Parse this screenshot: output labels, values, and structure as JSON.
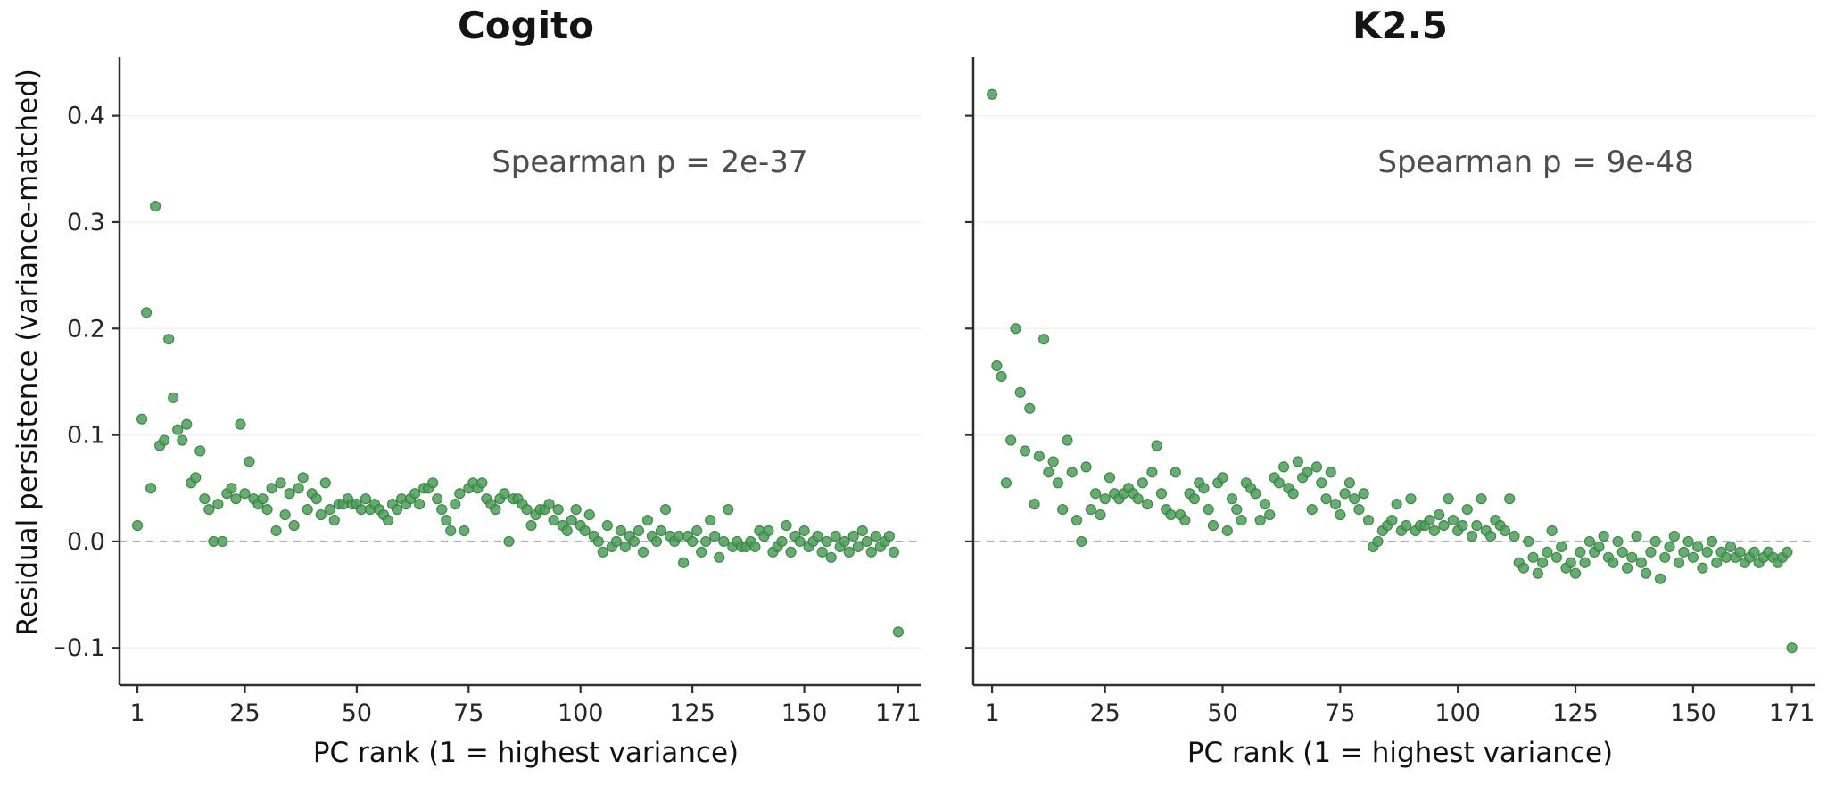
{
  "figure": {
    "y_axis_label": "Residual persistence  (variance-matched)",
    "background": "#ffffff"
  },
  "chart_data": [
    {
      "type": "scatter",
      "title": "Cogito",
      "annotation": "Spearman  p = 2e-37",
      "xlabel": "PC rank  (1 = highest variance)",
      "ylabel": "Residual persistence  (variance-matched)",
      "xlim": [
        -3,
        176
      ],
      "ylim": [
        -0.135,
        0.455
      ],
      "x_ticks": [
        1,
        25,
        50,
        75,
        100,
        125,
        150,
        171
      ],
      "y_ticks": [
        -0.1,
        0.0,
        0.1,
        0.2,
        0.3,
        0.4
      ],
      "x_rule": "PC rank = index + 1 (ranks 1..171)",
      "zero_line": 0.0,
      "zero_line_style": "dashed",
      "grid": "faint-horizontal",
      "legend": "none",
      "marker_color": "#4f9e5a",
      "marker_edge": "#35803f",
      "y": [
        0.015,
        0.115,
        0.215,
        0.05,
        0.315,
        0.09,
        0.095,
        0.19,
        0.135,
        0.105,
        0.095,
        0.11,
        0.055,
        0.06,
        0.085,
        0.04,
        0.03,
        0.0,
        0.035,
        0.0,
        0.045,
        0.05,
        0.04,
        0.11,
        0.045,
        0.075,
        0.04,
        0.035,
        0.04,
        0.03,
        0.05,
        0.01,
        0.055,
        0.025,
        0.045,
        0.015,
        0.05,
        0.06,
        0.03,
        0.045,
        0.04,
        0.025,
        0.055,
        0.03,
        0.02,
        0.035,
        0.035,
        0.04,
        0.035,
        0.035,
        0.03,
        0.04,
        0.03,
        0.035,
        0.03,
        0.025,
        0.02,
        0.035,
        0.03,
        0.04,
        0.035,
        0.04,
        0.045,
        0.035,
        0.05,
        0.05,
        0.055,
        0.04,
        0.03,
        0.02,
        0.01,
        0.035,
        0.045,
        0.01,
        0.05,
        0.055,
        0.05,
        0.055,
        0.04,
        0.035,
        0.03,
        0.04,
        0.045,
        0.0,
        0.04,
        0.04,
        0.035,
        0.03,
        0.015,
        0.025,
        0.03,
        0.03,
        0.035,
        0.02,
        0.03,
        0.015,
        0.01,
        0.02,
        0.03,
        0.015,
        0.01,
        0.025,
        0.005,
        0.0,
        -0.01,
        0.015,
        -0.005,
        0.0,
        0.01,
        -0.005,
        0.005,
        0.0,
        0.01,
        -0.01,
        0.02,
        0.005,
        0.0,
        0.01,
        0.03,
        0.005,
        0.0,
        0.005,
        -0.02,
        0.005,
        0.0,
        0.01,
        -0.01,
        0.0,
        0.02,
        0.005,
        -0.015,
        0.0,
        0.03,
        -0.005,
        0.0,
        -0.005,
        -0.005,
        0.0,
        -0.005,
        0.01,
        0.005,
        0.01,
        -0.01,
        -0.005,
        0.0,
        0.015,
        -0.01,
        0.005,
        0.0,
        0.01,
        -0.005,
        0.0,
        0.005,
        -0.01,
        0.0,
        -0.015,
        0.005,
        -0.005,
        0.0,
        -0.01,
        0.005,
        -0.005,
        0.01,
        0.0,
        -0.01,
        0.005,
        -0.005,
        0.0,
        0.005,
        -0.01,
        -0.085
      ]
    },
    {
      "type": "scatter",
      "title": "K2.5",
      "annotation": "Spearman  p = 9e-48",
      "xlabel": "PC rank  (1 = highest variance)",
      "ylabel": "Residual persistence  (variance-matched)",
      "xlim": [
        -3,
        176
      ],
      "ylim": [
        -0.135,
        0.455
      ],
      "x_ticks": [
        1,
        25,
        50,
        75,
        100,
        125,
        150,
        171
      ],
      "y_ticks": [
        -0.1,
        0.0,
        0.1,
        0.2,
        0.3,
        0.4
      ],
      "x_rule": "PC rank = index + 1 (ranks 1..171)",
      "zero_line": 0.0,
      "zero_line_style": "dashed",
      "grid": "faint-horizontal",
      "legend": "none",
      "marker_color": "#4f9e5a",
      "marker_edge": "#35803f",
      "y": [
        0.42,
        0.165,
        0.155,
        0.055,
        0.095,
        0.2,
        0.14,
        0.085,
        0.125,
        0.035,
        0.08,
        0.19,
        0.065,
        0.075,
        0.055,
        0.03,
        0.095,
        0.065,
        0.02,
        0.0,
        0.07,
        0.03,
        0.045,
        0.025,
        0.04,
        0.06,
        0.045,
        0.04,
        0.045,
        0.05,
        0.045,
        0.04,
        0.055,
        0.035,
        0.065,
        0.09,
        0.045,
        0.03,
        0.025,
        0.065,
        0.025,
        0.02,
        0.045,
        0.04,
        0.055,
        0.05,
        0.03,
        0.015,
        0.055,
        0.06,
        0.01,
        0.04,
        0.03,
        0.02,
        0.055,
        0.05,
        0.045,
        0.02,
        0.035,
        0.025,
        0.06,
        0.055,
        0.07,
        0.05,
        0.045,
        0.075,
        0.06,
        0.065,
        0.03,
        0.07,
        0.055,
        0.04,
        0.065,
        0.035,
        0.025,
        0.045,
        0.055,
        0.04,
        0.03,
        0.045,
        0.02,
        -0.005,
        0.0,
        0.01,
        0.015,
        0.02,
        0.035,
        0.01,
        0.015,
        0.04,
        0.01,
        0.015,
        0.015,
        0.02,
        0.01,
        0.025,
        0.015,
        0.04,
        0.02,
        0.01,
        0.015,
        0.03,
        0.005,
        0.015,
        0.04,
        0.01,
        0.005,
        0.02,
        0.015,
        0.01,
        0.04,
        0.005,
        -0.02,
        -0.025,
        0.0,
        -0.015,
        -0.03,
        -0.02,
        -0.01,
        0.01,
        -0.015,
        -0.005,
        -0.025,
        -0.02,
        -0.03,
        -0.01,
        -0.02,
        0.0,
        -0.01,
        -0.005,
        0.005,
        -0.015,
        -0.02,
        0.0,
        -0.01,
        -0.025,
        -0.015,
        0.005,
        -0.02,
        -0.03,
        -0.01,
        0.0,
        -0.035,
        -0.015,
        -0.005,
        0.005,
        -0.02,
        -0.01,
        0.0,
        -0.015,
        -0.005,
        -0.025,
        -0.01,
        0.0,
        -0.02,
        -0.01,
        -0.015,
        -0.005,
        -0.015,
        -0.01,
        -0.02,
        -0.015,
        -0.01,
        -0.02,
        -0.015,
        -0.01,
        -0.015,
        -0.02,
        -0.015,
        -0.01,
        -0.1
      ]
    }
  ]
}
